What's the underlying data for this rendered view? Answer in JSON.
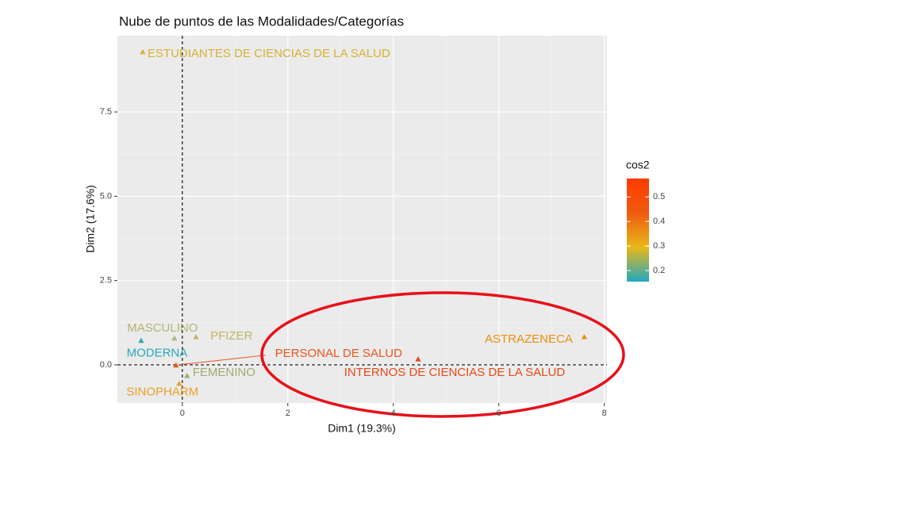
{
  "chart_data": {
    "type": "scatter",
    "title": "Nube de puntos de las Modalidades/Categorías",
    "x_label": "Dim1 (19.3%)",
    "y_label": "Dim2 (17.6%)",
    "labels": [
      "ESTUDIANTES DE CIENCIAS DE LA SALUD",
      "MASCULINO",
      "PFIZER",
      "MODERNA",
      "PERSONAL DE SALUD",
      "INTERNOS DE CIENCIAS DE LA SALUD",
      "FEMENINO",
      "SINOPHARM",
      "ASTRAZENECA"
    ],
    "x": [
      -0.75,
      -0.15,
      0.26,
      -0.78,
      -0.12,
      4.47,
      0.09,
      -0.06,
      7.62
    ],
    "y": [
      9.27,
      0.78,
      0.82,
      0.71,
      -0.02,
      0.16,
      -0.33,
      -0.56,
      0.82
    ],
    "colors": [
      "#d6b233",
      "#b4b474",
      "#c2b466",
      "#2aa8b8",
      "#ea561e",
      "#e8491a",
      "#9fab72",
      "#eaa022",
      "#ea900c"
    ],
    "xlim": [
      -1.23,
      8.05
    ],
    "ylim": [
      -1.13,
      9.76
    ],
    "xticks": [
      0,
      2,
      4,
      6,
      8
    ],
    "yticks": [
      {
        "value": 0,
        "label": "0.0"
      },
      {
        "value": 2.5,
        "label": "2.5"
      },
      {
        "value": 5,
        "label": "5.0"
      },
      {
        "value": 7.5,
        "label": "7.5"
      }
    ],
    "reference_lines": {
      "x": 0,
      "y": 0
    },
    "grid": true,
    "colorbar": {
      "title": "cos2",
      "lim": [
        0.155,
        0.575
      ],
      "ticks": [
        0.2,
        0.3,
        0.4,
        0.5
      ],
      "colors": [
        "#22a9c0",
        "#e8b81a",
        "#f05a10",
        "#ff3c00"
      ]
    }
  }
}
